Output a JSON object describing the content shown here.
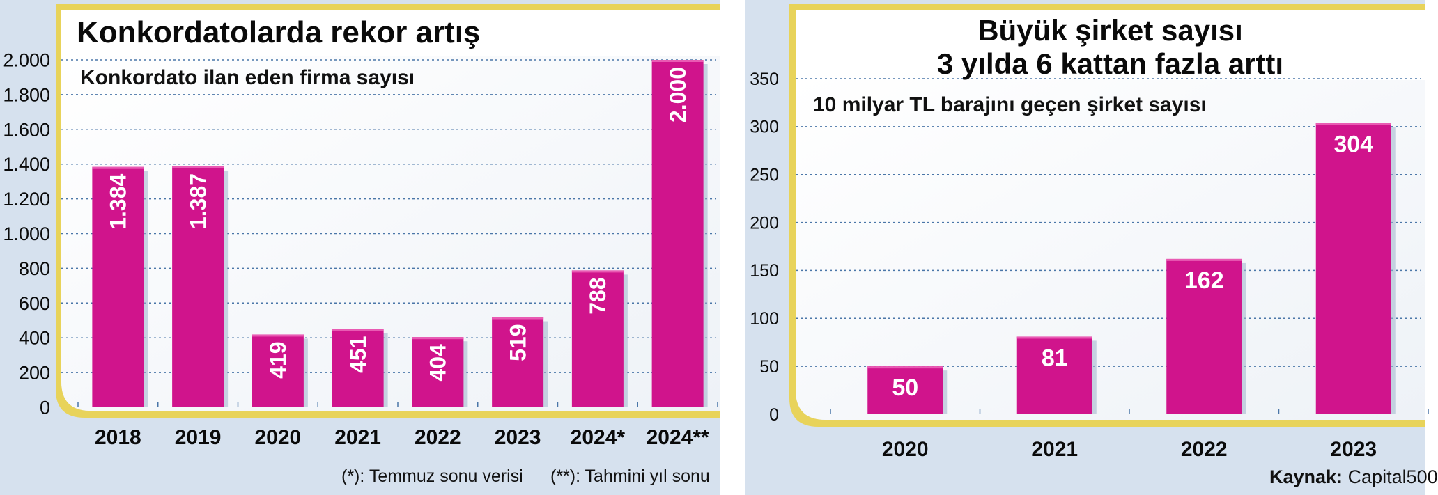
{
  "colors": {
    "bar": "#d0148c",
    "frame": "#e8d35a",
    "panel_bg": "#d6e1ee",
    "plot_bg": "#ffffff",
    "grid": "#4a76a8",
    "text": "#0a0a0a"
  },
  "left": {
    "title": "Konkordatolarda rekor artış",
    "footnote_1": "(*): Temmuz sonu verisi",
    "footnote_2": "(**): Tahmini yıl sonu"
  },
  "right": {
    "title_line1": "Büyük şirket sayısı",
    "title_line2": "3 yılda 6 kattan fazla arttı",
    "source_label": "Kaynak:",
    "source_value": "Capital500"
  },
  "chart_data": [
    {
      "type": "bar",
      "title": "Konkordatolarda rekor artış",
      "subtitle": "Konkordato ilan eden firma sayısı",
      "categories": [
        "2018",
        "2019",
        "2020",
        "2021",
        "2022",
        "2023",
        "2024*",
        "2024**"
      ],
      "values": [
        1384,
        1387,
        419,
        451,
        404,
        519,
        788,
        2000
      ],
      "data_labels": [
        "1.384",
        "1.387",
        "419",
        "451",
        "404",
        "519",
        "788",
        "2.000"
      ],
      "ylim": [
        0,
        2000
      ],
      "yticks": [
        0,
        200,
        400,
        600,
        800,
        1000,
        1200,
        1400,
        1600,
        1800,
        2000
      ],
      "ytick_labels": [
        "0",
        "200",
        "400",
        "600",
        "800",
        "1.000",
        "1.200",
        "1.400",
        "1.600",
        "1.800",
        "2.000"
      ],
      "grid": true,
      "xlabel": "",
      "ylabel": ""
    },
    {
      "type": "bar",
      "title": "Büyük şirket sayısı 3 yılda 6 kattan fazla arttı",
      "subtitle": "10 milyar TL barajını geçen şirket sayısı",
      "categories": [
        "2020",
        "2021",
        "2022",
        "2023"
      ],
      "values": [
        50,
        81,
        162,
        304
      ],
      "data_labels": [
        "50",
        "81",
        "162",
        "304"
      ],
      "ylim": [
        0,
        350
      ],
      "yticks": [
        0,
        50,
        100,
        150,
        200,
        250,
        300,
        350
      ],
      "ytick_labels": [
        "0",
        "50",
        "100",
        "150",
        "200",
        "250",
        "300",
        "350"
      ],
      "grid": true,
      "xlabel": "",
      "ylabel": ""
    }
  ]
}
